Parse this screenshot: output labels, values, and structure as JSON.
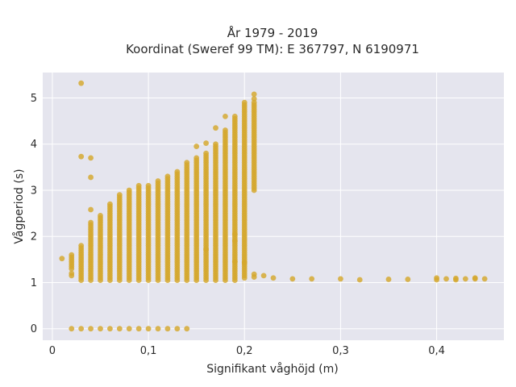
{
  "chart_data": {
    "type": "scatter",
    "title": "År 1979 - 2019",
    "subtitle": "Koordinat (Sweref 99 TM): E 367797, N 6190971",
    "xlabel": "Signifikant våghöjd (m)",
    "ylabel": "Vågperiod (s)",
    "xlim": [
      -0.01,
      0.47
    ],
    "ylim": [
      -0.25,
      5.55
    ],
    "x_ticks": [
      0,
      0.1,
      0.2,
      0.3,
      0.4
    ],
    "x_tick_labels": [
      "0",
      "0,1",
      "0,2",
      "0,3",
      "0,4"
    ],
    "y_ticks": [
      0,
      1,
      2,
      3,
      4,
      5
    ],
    "y_tick_labels": [
      "0",
      "1",
      "2",
      "3",
      "4",
      "5"
    ],
    "grid": true,
    "colors": {
      "background": "#e5e5ee",
      "grid": "#ffffff",
      "marker": "#d4a72c"
    },
    "columns": [
      {
        "x": 0.02,
        "y_min": 1.3,
        "y_max": 1.6
      },
      {
        "x": 0.03,
        "y_min": 1.05,
        "y_max": 1.8
      },
      {
        "x": 0.04,
        "y_min": 1.05,
        "y_max": 2.3
      },
      {
        "x": 0.05,
        "y_min": 1.05,
        "y_max": 2.45
      },
      {
        "x": 0.06,
        "y_min": 1.05,
        "y_max": 2.7
      },
      {
        "x": 0.07,
        "y_min": 1.05,
        "y_max": 2.9
      },
      {
        "x": 0.08,
        "y_min": 1.05,
        "y_max": 3.0
      },
      {
        "x": 0.09,
        "y_min": 1.05,
        "y_max": 3.1
      },
      {
        "x": 0.1,
        "y_min": 1.05,
        "y_max": 3.1
      },
      {
        "x": 0.11,
        "y_min": 1.05,
        "y_max": 3.2
      },
      {
        "x": 0.12,
        "y_min": 1.05,
        "y_max": 3.3
      },
      {
        "x": 0.13,
        "y_min": 1.05,
        "y_max": 3.4
      },
      {
        "x": 0.14,
        "y_min": 1.05,
        "y_max": 3.6
      },
      {
        "x": 0.15,
        "y_min": 1.05,
        "y_max": 3.7
      },
      {
        "x": 0.16,
        "y_min": 1.05,
        "y_max": 3.8
      },
      {
        "x": 0.17,
        "y_min": 1.05,
        "y_max": 4.0
      },
      {
        "x": 0.18,
        "y_min": 1.05,
        "y_max": 4.3
      },
      {
        "x": 0.19,
        "y_min": 1.05,
        "y_max": 4.6
      },
      {
        "x": 0.2,
        "y_min": 1.1,
        "y_max": 4.9
      },
      {
        "x": 0.21,
        "y_min": 3.0,
        "y_max": 4.9
      }
    ],
    "points": [
      {
        "x": 0.01,
        "y": 1.52
      },
      {
        "x": 0.02,
        "y": 1.2
      },
      {
        "x": 0.02,
        "y": 1.15
      },
      {
        "x": 0.02,
        "y": 0
      },
      {
        "x": 0.03,
        "y": 0
      },
      {
        "x": 0.04,
        "y": 0
      },
      {
        "x": 0.05,
        "y": 0
      },
      {
        "x": 0.06,
        "y": 0
      },
      {
        "x": 0.07,
        "y": 0
      },
      {
        "x": 0.08,
        "y": 0
      },
      {
        "x": 0.09,
        "y": 0
      },
      {
        "x": 0.1,
        "y": 0
      },
      {
        "x": 0.11,
        "y": 0
      },
      {
        "x": 0.12,
        "y": 0
      },
      {
        "x": 0.13,
        "y": 0
      },
      {
        "x": 0.14,
        "y": 0
      },
      {
        "x": 0.03,
        "y": 5.32
      },
      {
        "x": 0.03,
        "y": 3.73
      },
      {
        "x": 0.04,
        "y": 3.7
      },
      {
        "x": 0.04,
        "y": 3.28
      },
      {
        "x": 0.04,
        "y": 2.58
      },
      {
        "x": 0.15,
        "y": 3.95
      },
      {
        "x": 0.16,
        "y": 4.02
      },
      {
        "x": 0.17,
        "y": 4.35
      },
      {
        "x": 0.18,
        "y": 4.6
      },
      {
        "x": 0.16,
        "y": 1.72
      },
      {
        "x": 0.19,
        "y": 2.05
      },
      {
        "x": 0.19,
        "y": 1.9
      },
      {
        "x": 0.19,
        "y": 1.45
      },
      {
        "x": 0.2,
        "y": 1.43
      },
      {
        "x": 0.21,
        "y": 5.08
      },
      {
        "x": 0.21,
        "y": 4.98
      },
      {
        "x": 0.21,
        "y": 1.18
      },
      {
        "x": 0.21,
        "y": 1.12
      },
      {
        "x": 0.22,
        "y": 1.15
      },
      {
        "x": 0.23,
        "y": 1.1
      },
      {
        "x": 0.25,
        "y": 1.08
      },
      {
        "x": 0.27,
        "y": 1.08
      },
      {
        "x": 0.3,
        "y": 1.08
      },
      {
        "x": 0.32,
        "y": 1.06
      },
      {
        "x": 0.35,
        "y": 1.07
      },
      {
        "x": 0.37,
        "y": 1.07
      },
      {
        "x": 0.4,
        "y": 1.1
      },
      {
        "x": 0.4,
        "y": 1.06
      },
      {
        "x": 0.41,
        "y": 1.08
      },
      {
        "x": 0.42,
        "y": 1.09
      },
      {
        "x": 0.42,
        "y": 1.06
      },
      {
        "x": 0.43,
        "y": 1.08
      },
      {
        "x": 0.44,
        "y": 1.08
      },
      {
        "x": 0.44,
        "y": 1.1
      },
      {
        "x": 0.45,
        "y": 1.08
      }
    ]
  }
}
